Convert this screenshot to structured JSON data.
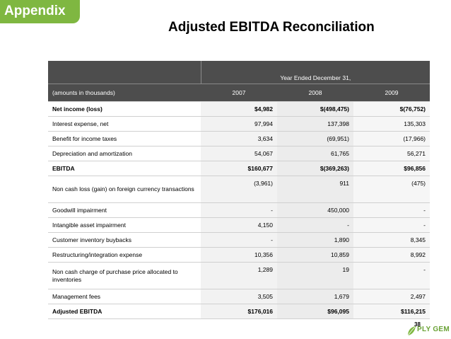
{
  "section_tab": "Appendix",
  "title": "Adjusted EBITDA Reconciliation",
  "table": {
    "header_span": "Year Ended December 31,",
    "units_label": "(amounts in thousands)",
    "years": [
      "2007",
      "2008",
      "2009"
    ],
    "rows": [
      {
        "label": "Net income (loss)",
        "values": [
          "$4,982",
          "$(498,475)",
          "$(76,752)"
        ],
        "bold": true,
        "tall": false
      },
      {
        "label": "Interest expense, net",
        "values": [
          "97,994",
          "137,398",
          "135,303"
        ],
        "bold": false,
        "tall": false
      },
      {
        "label": "Benefit for income taxes",
        "values": [
          "3,634",
          "(69,951)",
          "(17,966)"
        ],
        "bold": false,
        "tall": false
      },
      {
        "label": "Depreciation and amortization",
        "values": [
          "54,067",
          "61,765",
          "56,271"
        ],
        "bold": false,
        "tall": false
      },
      {
        "label": "EBITDA",
        "values": [
          "$160,677",
          "$(369,263)",
          "$96,856"
        ],
        "bold": true,
        "tall": false
      },
      {
        "label": "Non cash loss (gain) on foreign currency transactions",
        "values": [
          "(3,961)",
          "911",
          "(475)"
        ],
        "bold": false,
        "tall": true
      },
      {
        "label": "Goodwill impairment",
        "values": [
          "-",
          "450,000",
          "-"
        ],
        "bold": false,
        "tall": false
      },
      {
        "label": "Intangible asset impairment",
        "values": [
          "4,150",
          "-",
          "-"
        ],
        "bold": false,
        "tall": false
      },
      {
        "label": "Customer inventory buybacks",
        "values": [
          "-",
          "1,890",
          "8,345"
        ],
        "bold": false,
        "tall": false
      },
      {
        "label": "Restructuring/integration expense",
        "values": [
          "10,356",
          "10,859",
          "8,992"
        ],
        "bold": false,
        "tall": false
      },
      {
        "label": "Non cash charge of purchase price allocated to inventories",
        "values": [
          "1,289",
          "19",
          "-"
        ],
        "bold": false,
        "tall": true
      },
      {
        "label": "Management fees",
        "values": [
          "3,505",
          "1,679",
          "2,497"
        ],
        "bold": false,
        "tall": false
      },
      {
        "label": "Adjusted EBITDA",
        "values": [
          "$176,016",
          "$96,095",
          "$116,215"
        ],
        "bold": true,
        "tall": false
      }
    ]
  },
  "page_number": "38",
  "logo_text": "PLY GEM",
  "colors": {
    "accent": "#7fb741",
    "header_bg": "#4d4d4d"
  }
}
